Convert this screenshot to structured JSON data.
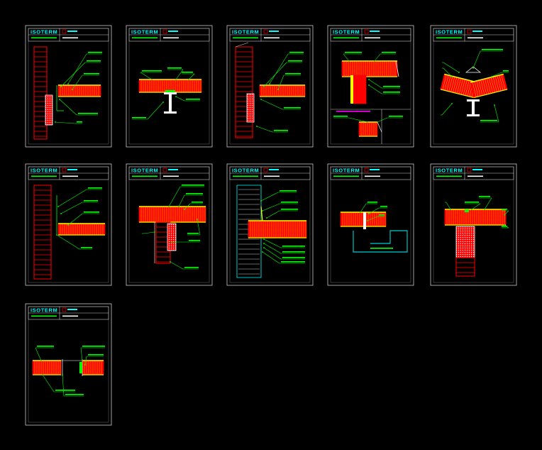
{
  "viewport": {
    "background": "#000000"
  },
  "colors": {
    "frame": "#c8c8c8",
    "brand": "#00ffff",
    "red": "#ff0000",
    "yellow": "#ffff00",
    "green": "#00ff00",
    "white": "#ffffff",
    "magenta": "#ff00ff"
  },
  "brand_text": "ISOTERM",
  "sheets": [
    {
      "id": "s1",
      "detail": "wall-panel-junction"
    },
    {
      "id": "s2",
      "detail": "panel-on-steel-beam"
    },
    {
      "id": "s3",
      "detail": "wall-panel-junction-alt"
    },
    {
      "id": "s4",
      "detail": "panel-on-masonry-wall-with-section"
    },
    {
      "id": "s5",
      "detail": "ridge-on-steel-beam"
    },
    {
      "id": "s6",
      "detail": "wall-panel-abutment"
    },
    {
      "id": "s7",
      "detail": "panel-on-masonry-wall"
    },
    {
      "id": "s8",
      "detail": "panel-over-step"
    },
    {
      "id": "s9",
      "detail": "panel-over-channel"
    },
    {
      "id": "s10",
      "detail": "panel-on-block-wall"
    },
    {
      "id": "s11",
      "detail": "panel-opening"
    }
  ]
}
